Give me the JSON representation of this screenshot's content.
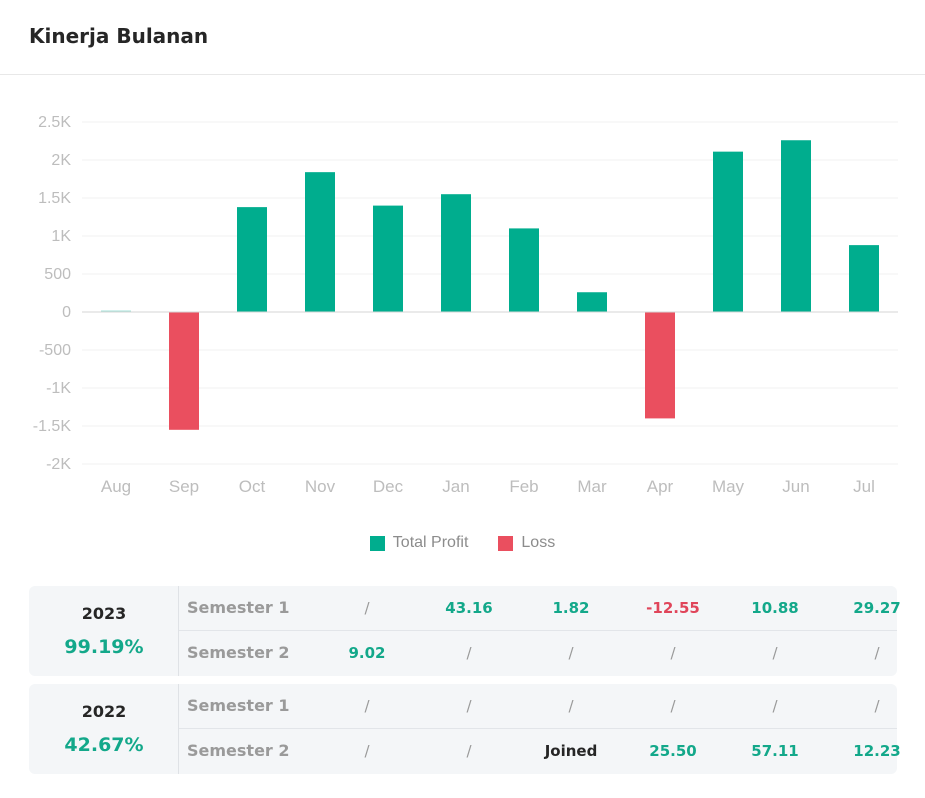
{
  "header": {
    "title": "Kinerja Bulanan"
  },
  "chart_data": {
    "type": "bar",
    "categories": [
      "Aug",
      "Sep",
      "Oct",
      "Nov",
      "Dec",
      "Jan",
      "Feb",
      "Mar",
      "Apr",
      "May",
      "Jun",
      "Jul"
    ],
    "values": [
      10,
      -1550,
      1380,
      1840,
      1400,
      1550,
      1100,
      260,
      -1400,
      2110,
      2260,
      880
    ],
    "yticks": [
      2500,
      2000,
      1500,
      1000,
      500,
      0,
      -500,
      -1000,
      -1500,
      -2000
    ],
    "ytick_labels": [
      "2.5K",
      "2K",
      "1.5K",
      "1K",
      "500",
      "0",
      "-500",
      "-1K",
      "-1.5K",
      "-2K"
    ],
    "ylim": [
      -2000,
      2500
    ],
    "grid": true,
    "legend_position": "bottom-center",
    "legend": [
      {
        "name": "Total Profit",
        "color": "#00ad8e"
      },
      {
        "name": "Loss",
        "color": "#ea4f5f"
      }
    ],
    "colors": {
      "positive": "#00ad8e",
      "negative": "#ea4f5f"
    }
  },
  "summary": [
    {
      "year": "2023",
      "total": "99.19%",
      "rows": [
        {
          "label": "Semester 1",
          "cells": [
            {
              "text": "/",
              "kind": "none"
            },
            {
              "text": "43.16",
              "kind": "pos"
            },
            {
              "text": "1.82",
              "kind": "pos"
            },
            {
              "text": "-12.55",
              "kind": "neg"
            },
            {
              "text": "10.88",
              "kind": "pos"
            },
            {
              "text": "29.27",
              "kind": "pos"
            }
          ]
        },
        {
          "label": "Semester 2",
          "cells": [
            {
              "text": "9.02",
              "kind": "pos"
            },
            {
              "text": "/",
              "kind": "none"
            },
            {
              "text": "/",
              "kind": "none"
            },
            {
              "text": "/",
              "kind": "none"
            },
            {
              "text": "/",
              "kind": "none"
            },
            {
              "text": "/",
              "kind": "none"
            }
          ]
        }
      ]
    },
    {
      "year": "2022",
      "total": "42.67%",
      "rows": [
        {
          "label": "Semester 1",
          "cells": [
            {
              "text": "/",
              "kind": "none"
            },
            {
              "text": "/",
              "kind": "none"
            },
            {
              "text": "/",
              "kind": "none"
            },
            {
              "text": "/",
              "kind": "none"
            },
            {
              "text": "/",
              "kind": "none"
            },
            {
              "text": "/",
              "kind": "none"
            }
          ]
        },
        {
          "label": "Semester 2",
          "cells": [
            {
              "text": "/",
              "kind": "none"
            },
            {
              "text": "/",
              "kind": "none"
            },
            {
              "text": "Joined",
              "kind": "dark"
            },
            {
              "text": "25.50",
              "kind": "pos"
            },
            {
              "text": "57.11",
              "kind": "pos"
            },
            {
              "text": "12.23",
              "kind": "pos"
            }
          ]
        }
      ]
    }
  ]
}
